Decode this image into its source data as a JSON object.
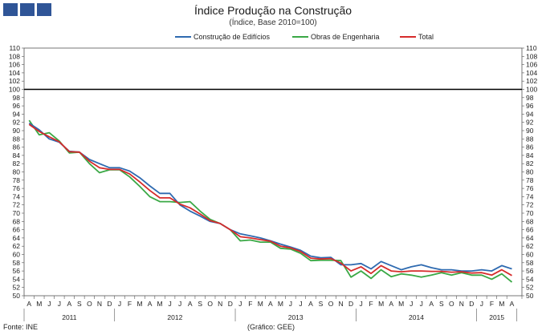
{
  "header": {
    "title": "Índice Produção na Construção",
    "subtitle": "(Índice, Base 2010=100)"
  },
  "footer": {
    "source": "Fonte: INE",
    "credit": "(Gráfico: GEE)"
  },
  "colors": {
    "logo": "#2f5597",
    "buildings": "#2e6ab0",
    "engineering": "#3aa845",
    "total": "#d62b2b",
    "reference": "#000000"
  },
  "chart_data": {
    "type": "line",
    "title": "Índice Produção na Construção",
    "subtitle": "(Índice, Base 2010=100)",
    "ylim": [
      50,
      110
    ],
    "y_ticks": [
      50,
      52,
      54,
      56,
      58,
      60,
      62,
      64,
      66,
      68,
      70,
      72,
      74,
      76,
      78,
      80,
      82,
      84,
      86,
      88,
      90,
      92,
      94,
      96,
      98,
      100,
      102,
      104,
      106,
      108,
      110
    ],
    "reference_line": 100,
    "legend_position": "top",
    "categories": [
      "A",
      "M",
      "J",
      "J",
      "A",
      "S",
      "O",
      "N",
      "D",
      "J",
      "F",
      "M",
      "A",
      "M",
      "J",
      "J",
      "A",
      "S",
      "O",
      "N",
      "D",
      "J",
      "F",
      "M",
      "A",
      "M",
      "J",
      "J",
      "A",
      "S",
      "O",
      "N",
      "D",
      "J",
      "F",
      "M",
      "A",
      "M",
      "J",
      "J",
      "A",
      "S",
      "O",
      "N",
      "D",
      "J",
      "F",
      "M",
      "A"
    ],
    "years": [
      {
        "label": "2011",
        "start": 0,
        "end": 8
      },
      {
        "label": "2012",
        "start": 9,
        "end": 20
      },
      {
        "label": "2013",
        "start": 21,
        "end": 32
      },
      {
        "label": "2014",
        "start": 33,
        "end": 44
      },
      {
        "label": "2015",
        "start": 45,
        "end": 48
      }
    ],
    "series": [
      {
        "name": "Construção de Edifícios",
        "color": "#2e6ab0",
        "values": [
          91.8,
          90.2,
          88.0,
          87.2,
          85.0,
          84.8,
          83.0,
          82.0,
          81.0,
          81.0,
          80.2,
          78.6,
          76.6,
          74.8,
          74.8,
          72.0,
          70.5,
          69.3,
          68.0,
          67.5,
          66.0,
          65.0,
          64.5,
          64.0,
          63.3,
          62.5,
          61.8,
          61.0,
          59.6,
          59.2,
          59.3,
          57.5,
          57.5,
          57.8,
          56.5,
          58.3,
          57.3,
          56.3,
          57.0,
          57.5,
          56.8,
          56.3,
          56.3,
          56.0,
          56.0,
          56.3,
          56.0,
          57.3,
          56.5
        ]
      },
      {
        "name": "Obras de Engenharia",
        "color": "#3aa845",
        "values": [
          92.5,
          89.0,
          89.5,
          87.5,
          84.6,
          84.8,
          82.0,
          79.8,
          80.5,
          80.5,
          78.8,
          76.5,
          74.0,
          72.8,
          72.8,
          72.6,
          72.8,
          70.5,
          68.5,
          67.5,
          66.0,
          63.3,
          63.5,
          63.0,
          63.0,
          61.5,
          61.3,
          60.3,
          58.5,
          58.6,
          58.6,
          58.5,
          54.5,
          56.0,
          54.2,
          56.3,
          54.6,
          55.3,
          55.0,
          54.5,
          55.0,
          55.6,
          55.0,
          55.6,
          55.0,
          55.0,
          54.0,
          55.3,
          53.3
        ]
      },
      {
        "name": "Total",
        "color": "#d62b2b",
        "values": [
          91.5,
          89.8,
          88.5,
          87.3,
          84.9,
          84.8,
          82.6,
          81.0,
          80.6,
          80.6,
          79.5,
          77.6,
          75.5,
          73.7,
          73.7,
          72.2,
          71.3,
          69.8,
          68.2,
          67.5,
          66.0,
          64.3,
          64.0,
          63.6,
          63.2,
          62.0,
          61.6,
          60.7,
          59.1,
          58.9,
          59.0,
          57.9,
          56.0,
          57.0,
          55.4,
          57.3,
          56.0,
          55.8,
          56.0,
          56.0,
          55.9,
          55.9,
          55.7,
          55.8,
          55.5,
          55.6,
          55.0,
          56.3,
          54.9
        ]
      }
    ]
  }
}
